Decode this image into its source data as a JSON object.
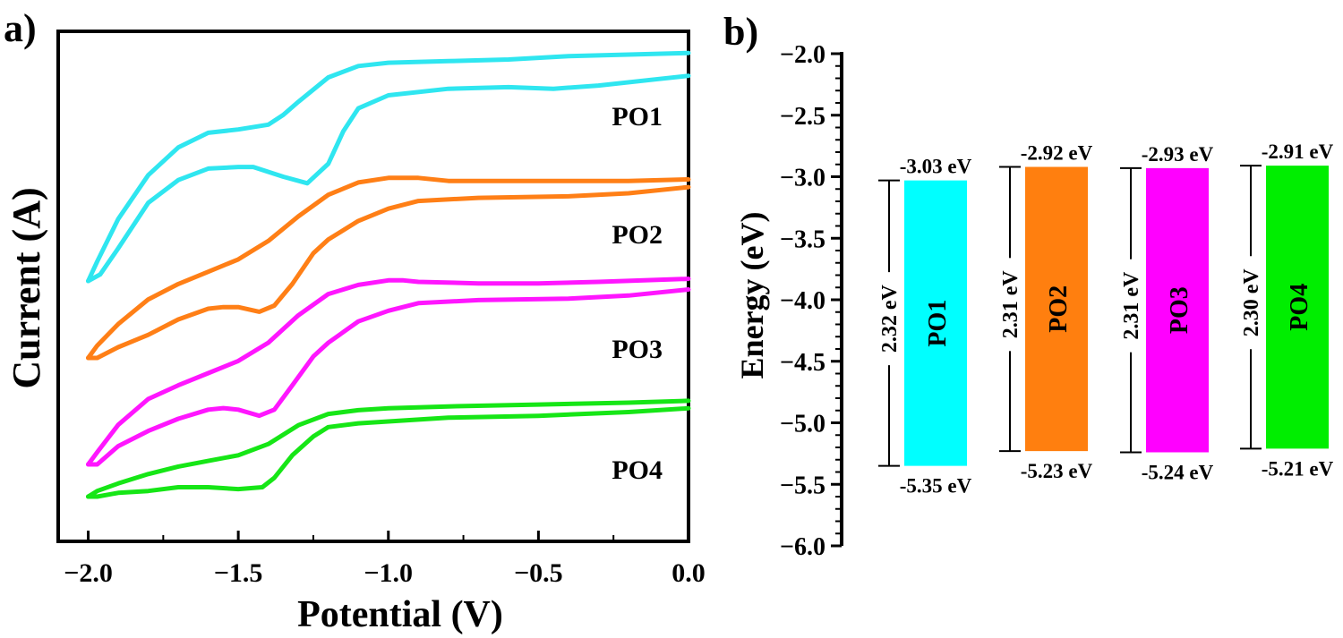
{
  "chart_data": [
    {
      "panel_label": "a)",
      "type": "line",
      "xlabel": "Potential (V)",
      "ylabel": "Current (A)",
      "xlim": [
        -2.1,
        0.0
      ],
      "x_ticks": [
        "−2.0",
        "−1.5",
        "−1.0",
        "−0.5",
        "0.0"
      ],
      "y_ticks_shown": false,
      "series": [
        {
          "name": "PO1",
          "color": "#2fe6f0",
          "offset": 0,
          "upper": [
            [
              -2.0,
              0.0
            ],
            [
              -1.97,
              0.12
            ],
            [
              -1.9,
              0.38
            ],
            [
              -1.8,
              0.65
            ],
            [
              -1.7,
              0.82
            ],
            [
              -1.6,
              0.91
            ],
            [
              -1.5,
              0.93
            ],
            [
              -1.4,
              0.96
            ],
            [
              -1.35,
              1.02
            ],
            [
              -1.3,
              1.1
            ],
            [
              -1.2,
              1.25
            ],
            [
              -1.1,
              1.32
            ],
            [
              -1.0,
              1.34
            ],
            [
              -0.8,
              1.35
            ],
            [
              -0.6,
              1.36
            ],
            [
              -0.4,
              1.38
            ],
            [
              -0.2,
              1.39
            ],
            [
              0.0,
              1.4
            ]
          ],
          "lower": [
            [
              -2.0,
              0.0
            ],
            [
              -1.96,
              0.04
            ],
            [
              -1.9,
              0.2
            ],
            [
              -1.8,
              0.48
            ],
            [
              -1.7,
              0.62
            ],
            [
              -1.6,
              0.69
            ],
            [
              -1.5,
              0.7
            ],
            [
              -1.45,
              0.7
            ],
            [
              -1.35,
              0.64
            ],
            [
              -1.27,
              0.6
            ],
            [
              -1.2,
              0.72
            ],
            [
              -1.15,
              0.92
            ],
            [
              -1.1,
              1.06
            ],
            [
              -1.0,
              1.14
            ],
            [
              -0.8,
              1.18
            ],
            [
              -0.6,
              1.19
            ],
            [
              -0.45,
              1.18
            ],
            [
              -0.3,
              1.2
            ],
            [
              -0.1,
              1.24
            ],
            [
              0.0,
              1.26
            ]
          ]
        },
        {
          "name": "PO2",
          "color": "#ff7f16",
          "offset": 0,
          "upper": [
            [
              -2.0,
              0.0
            ],
            [
              -1.97,
              0.08
            ],
            [
              -1.9,
              0.22
            ],
            [
              -1.8,
              0.38
            ],
            [
              -1.7,
              0.48
            ],
            [
              -1.6,
              0.56
            ],
            [
              -1.5,
              0.64
            ],
            [
              -1.4,
              0.76
            ],
            [
              -1.3,
              0.92
            ],
            [
              -1.2,
              1.06
            ],
            [
              -1.1,
              1.14
            ],
            [
              -1.0,
              1.17
            ],
            [
              -0.9,
              1.17
            ],
            [
              -0.8,
              1.15
            ],
            [
              -0.6,
              1.15
            ],
            [
              -0.4,
              1.15
            ],
            [
              -0.2,
              1.15
            ],
            [
              0.0,
              1.16
            ]
          ],
          "lower": [
            [
              -2.0,
              0.0
            ],
            [
              -1.97,
              0.0
            ],
            [
              -1.9,
              0.07
            ],
            [
              -1.8,
              0.15
            ],
            [
              -1.7,
              0.25
            ],
            [
              -1.6,
              0.32
            ],
            [
              -1.55,
              0.33
            ],
            [
              -1.5,
              0.33
            ],
            [
              -1.43,
              0.3
            ],
            [
              -1.38,
              0.34
            ],
            [
              -1.32,
              0.48
            ],
            [
              -1.25,
              0.68
            ],
            [
              -1.2,
              0.77
            ],
            [
              -1.1,
              0.89
            ],
            [
              -1.0,
              0.97
            ],
            [
              -0.9,
              1.02
            ],
            [
              -0.7,
              1.04
            ],
            [
              -0.4,
              1.05
            ],
            [
              -0.2,
              1.07
            ],
            [
              0.0,
              1.11
            ]
          ]
        },
        {
          "name": "PO3",
          "color": "#ff16ff",
          "offset": 0,
          "upper": [
            [
              -2.0,
              0.0
            ],
            [
              -1.97,
              0.08
            ],
            [
              -1.9,
              0.26
            ],
            [
              -1.8,
              0.43
            ],
            [
              -1.7,
              0.52
            ],
            [
              -1.6,
              0.6
            ],
            [
              -1.5,
              0.68
            ],
            [
              -1.4,
              0.8
            ],
            [
              -1.3,
              0.98
            ],
            [
              -1.2,
              1.12
            ],
            [
              -1.1,
              1.18
            ],
            [
              -1.0,
              1.21
            ],
            [
              -0.95,
              1.21
            ],
            [
              -0.9,
              1.2
            ],
            [
              -0.7,
              1.19
            ],
            [
              -0.5,
              1.19
            ],
            [
              -0.3,
              1.2
            ],
            [
              0.0,
              1.22
            ]
          ],
          "lower": [
            [
              -2.0,
              0.0
            ],
            [
              -1.97,
              0.0
            ],
            [
              -1.9,
              0.12
            ],
            [
              -1.8,
              0.22
            ],
            [
              -1.7,
              0.3
            ],
            [
              -1.6,
              0.36
            ],
            [
              -1.55,
              0.37
            ],
            [
              -1.5,
              0.36
            ],
            [
              -1.43,
              0.32
            ],
            [
              -1.38,
              0.36
            ],
            [
              -1.32,
              0.52
            ],
            [
              -1.25,
              0.71
            ],
            [
              -1.2,
              0.8
            ],
            [
              -1.1,
              0.94
            ],
            [
              -1.0,
              1.01
            ],
            [
              -0.9,
              1.06
            ],
            [
              -0.7,
              1.08
            ],
            [
              -0.4,
              1.09
            ],
            [
              -0.2,
              1.11
            ],
            [
              0.0,
              1.15
            ]
          ]
        },
        {
          "name": "PO4",
          "color": "#16e616",
          "offset": 0,
          "upper": [
            [
              -2.0,
              0.0
            ],
            [
              -1.97,
              0.03
            ],
            [
              -1.9,
              0.07
            ],
            [
              -1.8,
              0.12
            ],
            [
              -1.7,
              0.16
            ],
            [
              -1.6,
              0.19
            ],
            [
              -1.5,
              0.22
            ],
            [
              -1.4,
              0.28
            ],
            [
              -1.3,
              0.38
            ],
            [
              -1.2,
              0.44
            ],
            [
              -1.1,
              0.46
            ],
            [
              -1.0,
              0.47
            ],
            [
              -0.8,
              0.48
            ],
            [
              -0.5,
              0.49
            ],
            [
              -0.2,
              0.5
            ],
            [
              0.0,
              0.51
            ]
          ],
          "lower": [
            [
              -2.0,
              0.0
            ],
            [
              -1.97,
              0.0
            ],
            [
              -1.9,
              0.02
            ],
            [
              -1.8,
              0.03
            ],
            [
              -1.7,
              0.05
            ],
            [
              -1.6,
              0.05
            ],
            [
              -1.5,
              0.04
            ],
            [
              -1.42,
              0.05
            ],
            [
              -1.38,
              0.1
            ],
            [
              -1.32,
              0.22
            ],
            [
              -1.25,
              0.32
            ],
            [
              -1.2,
              0.37
            ],
            [
              -1.1,
              0.39
            ],
            [
              -1.0,
              0.4
            ],
            [
              -0.8,
              0.42
            ],
            [
              -0.5,
              0.43
            ],
            [
              -0.2,
              0.45
            ],
            [
              0.0,
              0.47
            ]
          ]
        }
      ]
    },
    {
      "panel_label": "b)",
      "type": "bar",
      "ylabel": "Energy (eV)",
      "ylim": [
        -6.0,
        -2.0
      ],
      "y_ticks": [
        "−2.0",
        "−2.5",
        "−3.0",
        "−3.5",
        "−4.0",
        "−4.5",
        "−5.0",
        "−5.5",
        "−6.0"
      ],
      "bars": [
        {
          "name": "PO1",
          "color": "#00ffff",
          "lumo": -3.03,
          "homo": -5.35,
          "gap": 2.32,
          "lumo_label": "-3.03 eV",
          "homo_label": "-5.35 eV",
          "gap_label": "2.32 eV"
        },
        {
          "name": "PO2",
          "color": "#ff7f0f",
          "lumo": -2.92,
          "homo": -5.23,
          "gap": 2.31,
          "lumo_label": "-2.92 eV",
          "homo_label": "-5.23 eV",
          "gap_label": "2.31 eV"
        },
        {
          "name": "PO3",
          "color": "#ff00ff",
          "lumo": -2.93,
          "homo": -5.24,
          "gap": 2.31,
          "lumo_label": "-2.93 eV",
          "homo_label": "-5.24 eV",
          "gap_label": "2.31 eV"
        },
        {
          "name": "PO4",
          "color": "#00ee00",
          "lumo": -2.91,
          "homo": -5.21,
          "gap": 2.3,
          "lumo_label": "-2.91 eV",
          "homo_label": "-5.21 eV",
          "gap_label": "2.30 eV"
        }
      ]
    }
  ]
}
